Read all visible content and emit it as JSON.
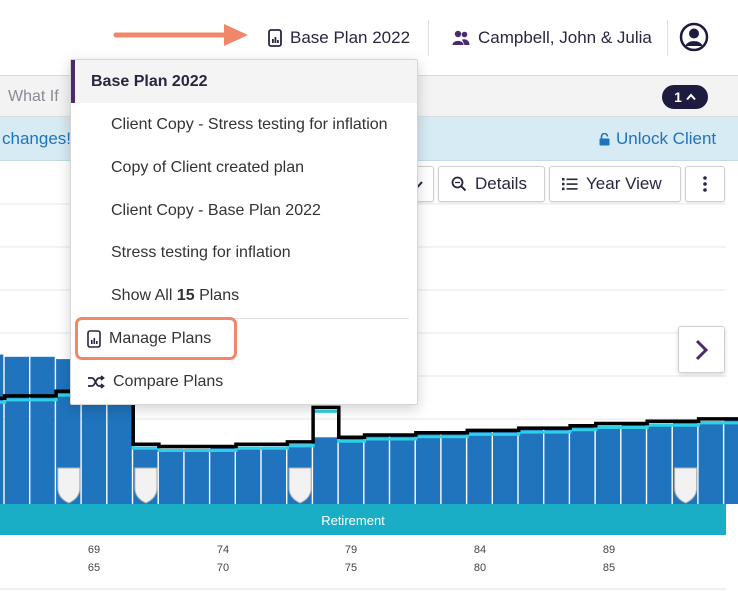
{
  "header": {
    "plan_label": "Base Plan 2022",
    "client_label": "Campbell, John & Julia"
  },
  "subnav": {
    "what_if_label": "What If",
    "badge_count": "1"
  },
  "banner": {
    "changes_text": "changes!",
    "unlock_label": "Unlock Client"
  },
  "toolbar": {
    "details_label": "Details",
    "year_view_label": "Year View"
  },
  "dropdown": {
    "current_plan": "Base Plan 2022",
    "plans": [
      "Client Copy - Stress testing for inflation",
      "Copy of Client created plan",
      "Client Copy - Base Plan 2022",
      "Stress testing for inflation"
    ],
    "show_all_prefix": "Show All",
    "show_all_count": "15",
    "show_all_suffix": "Plans",
    "manage_plans_label": "Manage Plans",
    "compare_plans_label": "Compare Plans"
  },
  "colors": {
    "bar": "#1f74bd",
    "line_cyan": "#2fd0e6",
    "line_black": "#000000",
    "phase_band": "#1aaec6",
    "brand_purple": "#4b2a6e",
    "highlight": "#f0876a"
  },
  "chart_data": {
    "type": "bar",
    "phase_label": "Retirement",
    "x_ticks_row1": [
      "69",
      "74",
      "79",
      "84",
      "89"
    ],
    "x_ticks_row2": [
      "65",
      "70",
      "75",
      "80",
      "85"
    ],
    "bar_values": [
      65,
      64,
      64,
      63,
      65,
      58,
      25,
      24,
      24,
      25,
      25,
      25,
      26,
      29,
      29,
      30,
      30,
      31,
      31,
      32,
      32,
      33,
      33,
      34,
      34,
      35,
      35,
      36,
      36,
      37,
      36,
      35,
      34,
      34
    ],
    "line_values": [
      46,
      47,
      47,
      49,
      50,
      51,
      26,
      25,
      25,
      25,
      26,
      26,
      27,
      42,
      29,
      30,
      30,
      31,
      31,
      32,
      32,
      33,
      33,
      34,
      35,
      35,
      36,
      36,
      37,
      37,
      37,
      35,
      35,
      36
    ],
    "event_markers_at_bar": [
      0,
      3,
      9,
      24
    ]
  }
}
